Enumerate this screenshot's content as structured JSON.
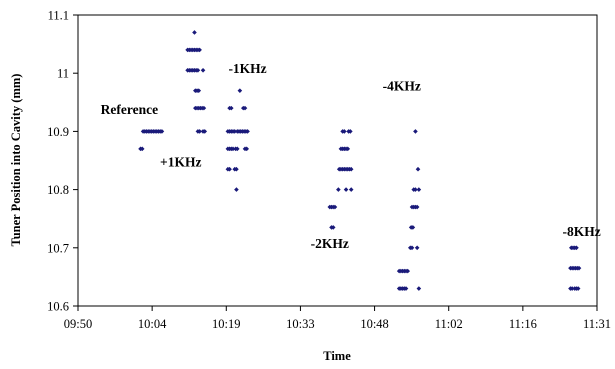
{
  "chart_data": {
    "type": "scatter",
    "title": "",
    "xlabel": "Time",
    "ylabel": "Tuner Position into Cavity (mm)",
    "xlim": [
      "09:50",
      "11:31"
    ],
    "ylim": [
      10.6,
      11.1
    ],
    "x_ticks": [
      "09:50",
      "10:04",
      "10:19",
      "10:33",
      "10:48",
      "11:02",
      "11:16",
      "11:31"
    ],
    "y_ticks": [
      "10.6",
      "10.7",
      "10.8",
      "10.9",
      "11",
      "11.1"
    ],
    "grid": false,
    "legend": "none",
    "marker_color": "#1a1a7a",
    "annotations": [
      {
        "text": "Reference",
        "x": "10:00",
        "y": 10.93
      },
      {
        "text": "+1KHz",
        "x": "10:10",
        "y": 10.84
      },
      {
        "text": "-1KHz",
        "x": "10:23",
        "y": 11.0
      },
      {
        "text": "-2KHz",
        "x": "10:39",
        "y": 10.7
      },
      {
        "text": "-4KHz",
        "x": "10:53",
        "y": 10.97
      },
      {
        "text": "-8KHz",
        "x": "11:28",
        "y": 10.72
      }
    ],
    "series": [
      {
        "points": [
          {
            "x": "10:02:10",
            "y": 10.87
          },
          {
            "x": "10:02:30",
            "y": 10.87
          },
          {
            "x": "10:02:40",
            "y": 10.9
          },
          {
            "x": "10:03:00",
            "y": 10.9
          },
          {
            "x": "10:03:20",
            "y": 10.9
          },
          {
            "x": "10:03:40",
            "y": 10.9
          },
          {
            "x": "10:04:00",
            "y": 10.9
          },
          {
            "x": "10:04:20",
            "y": 10.9
          },
          {
            "x": "10:04:40",
            "y": 10.9
          },
          {
            "x": "10:05:00",
            "y": 10.9
          },
          {
            "x": "10:05:20",
            "y": 10.9
          },
          {
            "x": "10:05:40",
            "y": 10.9
          },
          {
            "x": "10:06:00",
            "y": 10.9
          },
          {
            "x": "10:06:20",
            "y": 10.9
          },
          {
            "x": "10:11:20",
            "y": 11.04
          },
          {
            "x": "10:11:40",
            "y": 11.04
          },
          {
            "x": "10:12:00",
            "y": 11.04
          },
          {
            "x": "10:12:20",
            "y": 11.04
          },
          {
            "x": "10:12:40",
            "y": 11.04
          },
          {
            "x": "10:13:00",
            "y": 11.04
          },
          {
            "x": "10:13:20",
            "y": 11.04
          },
          {
            "x": "10:13:40",
            "y": 11.04
          },
          {
            "x": "10:11:20",
            "y": 11.005
          },
          {
            "x": "10:11:40",
            "y": 11.005
          },
          {
            "x": "10:12:00",
            "y": 11.005
          },
          {
            "x": "10:12:20",
            "y": 11.005
          },
          {
            "x": "10:12:40",
            "y": 11.005
          },
          {
            "x": "10:13:00",
            "y": 11.005
          },
          {
            "x": "10:13:20",
            "y": 11.005
          },
          {
            "x": "10:14:20",
            "y": 11.005
          },
          {
            "x": "10:12:40",
            "y": 11.07
          },
          {
            "x": "10:12:50",
            "y": 10.97
          },
          {
            "x": "10:13:10",
            "y": 10.97
          },
          {
            "x": "10:13:30",
            "y": 10.97
          },
          {
            "x": "10:12:50",
            "y": 10.94
          },
          {
            "x": "10:13:10",
            "y": 10.94
          },
          {
            "x": "10:13:30",
            "y": 10.94
          },
          {
            "x": "10:13:50",
            "y": 10.94
          },
          {
            "x": "10:14:10",
            "y": 10.94
          },
          {
            "x": "10:14:30",
            "y": 10.94
          },
          {
            "x": "10:13:20",
            "y": 10.9
          },
          {
            "x": "10:13:40",
            "y": 10.9
          },
          {
            "x": "10:14:20",
            "y": 10.9
          },
          {
            "x": "10:14:40",
            "y": 10.9
          },
          {
            "x": "10:19:30",
            "y": 10.94
          },
          {
            "x": "10:19:50",
            "y": 10.94
          },
          {
            "x": "10:22:10",
            "y": 10.94
          },
          {
            "x": "10:22:30",
            "y": 10.94
          },
          {
            "x": "10:21:30",
            "y": 10.97
          },
          {
            "x": "10:19:10",
            "y": 10.9
          },
          {
            "x": "10:19:30",
            "y": 10.9
          },
          {
            "x": "10:19:50",
            "y": 10.9
          },
          {
            "x": "10:20:10",
            "y": 10.9
          },
          {
            "x": "10:20:30",
            "y": 10.9
          },
          {
            "x": "10:21:00",
            "y": 10.9
          },
          {
            "x": "10:21:20",
            "y": 10.9
          },
          {
            "x": "10:21:40",
            "y": 10.9
          },
          {
            "x": "10:22:00",
            "y": 10.9
          },
          {
            "x": "10:22:20",
            "y": 10.9
          },
          {
            "x": "10:22:40",
            "y": 10.9
          },
          {
            "x": "10:23:00",
            "y": 10.9
          },
          {
            "x": "10:19:10",
            "y": 10.87
          },
          {
            "x": "10:19:30",
            "y": 10.87
          },
          {
            "x": "10:19:50",
            "y": 10.87
          },
          {
            "x": "10:20:10",
            "y": 10.87
          },
          {
            "x": "10:20:40",
            "y": 10.87
          },
          {
            "x": "10:21:00",
            "y": 10.87
          },
          {
            "x": "10:22:30",
            "y": 10.87
          },
          {
            "x": "10:22:50",
            "y": 10.87
          },
          {
            "x": "10:19:10",
            "y": 10.835
          },
          {
            "x": "10:19:30",
            "y": 10.835
          },
          {
            "x": "10:20:30",
            "y": 10.835
          },
          {
            "x": "10:20:50",
            "y": 10.835
          },
          {
            "x": "10:20:50",
            "y": 10.8
          },
          {
            "x": "10:39:00",
            "y": 10.77
          },
          {
            "x": "10:39:20",
            "y": 10.77
          },
          {
            "x": "10:39:40",
            "y": 10.77
          },
          {
            "x": "10:40:00",
            "y": 10.77
          },
          {
            "x": "10:39:20",
            "y": 10.735
          },
          {
            "x": "10:39:40",
            "y": 10.735
          },
          {
            "x": "10:40:40",
            "y": 10.8
          },
          {
            "x": "10:41:30",
            "y": 10.9
          },
          {
            "x": "10:41:50",
            "y": 10.9
          },
          {
            "x": "10:42:40",
            "y": 10.9
          },
          {
            "x": "10:43:00",
            "y": 10.9
          },
          {
            "x": "10:41:10",
            "y": 10.87
          },
          {
            "x": "10:41:30",
            "y": 10.87
          },
          {
            "x": "10:41:50",
            "y": 10.87
          },
          {
            "x": "10:42:10",
            "y": 10.87
          },
          {
            "x": "10:42:30",
            "y": 10.87
          },
          {
            "x": "10:40:50",
            "y": 10.835
          },
          {
            "x": "10:41:10",
            "y": 10.835
          },
          {
            "x": "10:41:30",
            "y": 10.835
          },
          {
            "x": "10:41:50",
            "y": 10.835
          },
          {
            "x": "10:42:10",
            "y": 10.835
          },
          {
            "x": "10:42:30",
            "y": 10.835
          },
          {
            "x": "10:42:50",
            "y": 10.835
          },
          {
            "x": "10:43:10",
            "y": 10.835
          },
          {
            "x": "10:42:10",
            "y": 10.8
          },
          {
            "x": "10:43:10",
            "y": 10.8
          },
          {
            "x": "10:52:30",
            "y": 10.66
          },
          {
            "x": "10:52:50",
            "y": 10.66
          },
          {
            "x": "10:53:10",
            "y": 10.66
          },
          {
            "x": "10:53:30",
            "y": 10.66
          },
          {
            "x": "10:53:50",
            "y": 10.66
          },
          {
            "x": "10:54:10",
            "y": 10.66
          },
          {
            "x": "10:52:30",
            "y": 10.63
          },
          {
            "x": "10:52:50",
            "y": 10.63
          },
          {
            "x": "10:53:10",
            "y": 10.63
          },
          {
            "x": "10:53:30",
            "y": 10.63
          },
          {
            "x": "10:53:50",
            "y": 10.63
          },
          {
            "x": "10:56:20",
            "y": 10.63
          },
          {
            "x": "10:54:40",
            "y": 10.7
          },
          {
            "x": "10:55:00",
            "y": 10.7
          },
          {
            "x": "10:56:00",
            "y": 10.7
          },
          {
            "x": "10:54:50",
            "y": 10.735
          },
          {
            "x": "10:55:10",
            "y": 10.735
          },
          {
            "x": "10:55:00",
            "y": 10.77
          },
          {
            "x": "10:55:20",
            "y": 10.77
          },
          {
            "x": "10:55:40",
            "y": 10.77
          },
          {
            "x": "10:56:00",
            "y": 10.77
          },
          {
            "x": "10:55:20",
            "y": 10.8
          },
          {
            "x": "10:55:40",
            "y": 10.8
          },
          {
            "x": "10:56:20",
            "y": 10.8
          },
          {
            "x": "10:56:10",
            "y": 10.835
          },
          {
            "x": "10:55:40",
            "y": 10.9
          },
          {
            "x": "11:26:00",
            "y": 10.7
          },
          {
            "x": "11:26:20",
            "y": 10.7
          },
          {
            "x": "11:26:40",
            "y": 10.7
          },
          {
            "x": "11:27:00",
            "y": 10.7
          },
          {
            "x": "11:25:50",
            "y": 10.665
          },
          {
            "x": "11:26:10",
            "y": 10.665
          },
          {
            "x": "11:26:30",
            "y": 10.665
          },
          {
            "x": "11:26:50",
            "y": 10.665
          },
          {
            "x": "11:27:10",
            "y": 10.665
          },
          {
            "x": "11:27:30",
            "y": 10.665
          },
          {
            "x": "11:25:50",
            "y": 10.63
          },
          {
            "x": "11:26:10",
            "y": 10.63
          },
          {
            "x": "11:26:40",
            "y": 10.63
          },
          {
            "x": "11:27:00",
            "y": 10.63
          },
          {
            "x": "11:27:20",
            "y": 10.63
          }
        ]
      }
    ]
  }
}
